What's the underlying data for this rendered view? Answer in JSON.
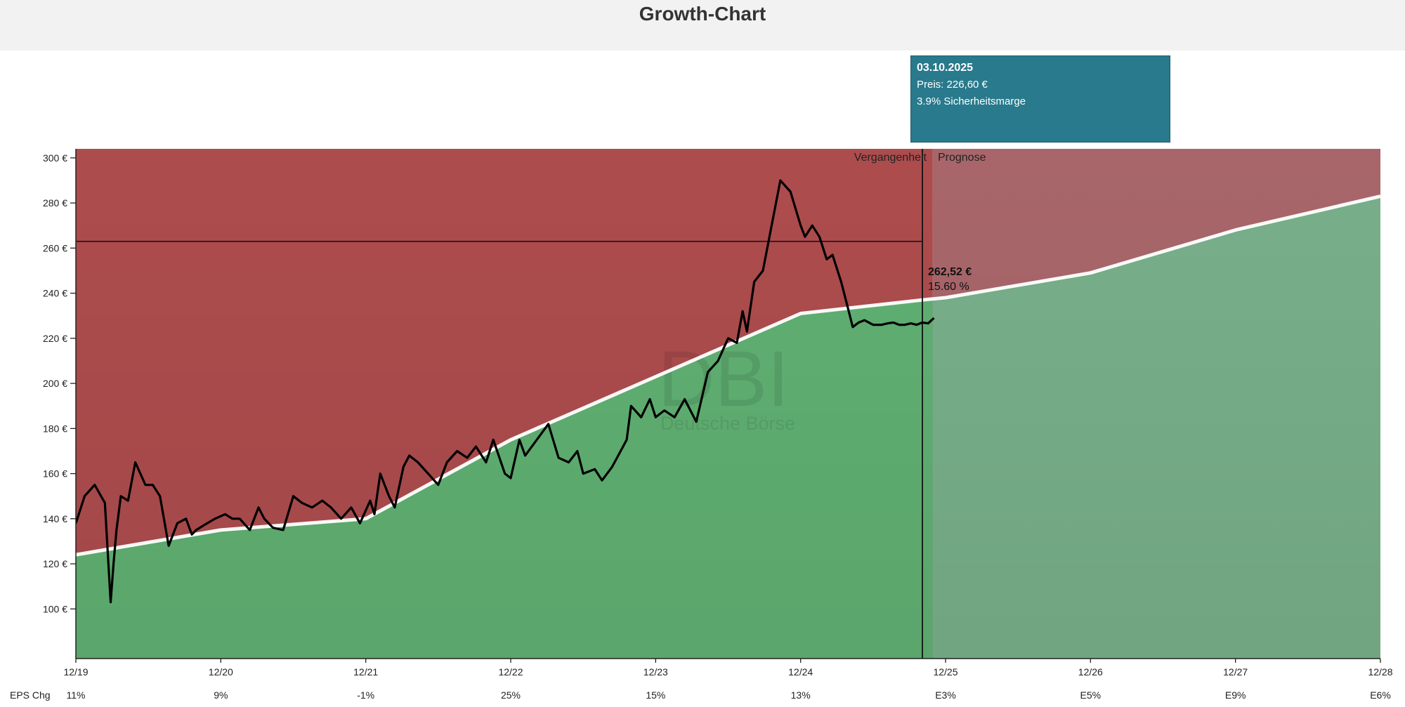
{
  "page": {
    "title": "Growth-Chart"
  },
  "tooltip": {
    "date": "03.10.2025",
    "price": "Preis: 226,60 €",
    "margin": "3.9% Sicherheitsmarge"
  },
  "colors": {
    "overvalued": "#ad4c4d",
    "undervalued": "#60b072",
    "forecast_over": "#a8666a",
    "forecast_under": "#78af8a",
    "fair_line": "#ffffff",
    "price_line": "#000000",
    "tooltip_bg": "#287a8c"
  },
  "chart_data": {
    "type": "line",
    "title": "Growth-Chart",
    "ylim": [
      78,
      304
    ],
    "xlim": [
      2019.92,
      2028.92
    ],
    "y_ticks": [
      "100 €",
      "120 €",
      "140 €",
      "160 €",
      "180 €",
      "200 €",
      "220 €",
      "240 €",
      "260 €",
      "280 €",
      "300 €"
    ],
    "y_tick_values": [
      100,
      120,
      140,
      160,
      180,
      200,
      220,
      240,
      260,
      280,
      300
    ],
    "x_tick_labels": [
      "12/19",
      "12/20",
      "12/21",
      "12/22",
      "12/23",
      "12/24",
      "12/25",
      "12/26",
      "12/27",
      "12/28"
    ],
    "x_tick_values": [
      2019.92,
      2020.92,
      2021.92,
      2022.92,
      2023.92,
      2024.92,
      2025.92,
      2026.92,
      2027.92,
      2028.92
    ],
    "eps_label": "EPS Chg",
    "eps_changes": [
      "11%",
      "9%",
      "-1%",
      "25%",
      "15%",
      "13%",
      "E3%",
      "E5%",
      "E9%",
      "E6%"
    ],
    "section_labels": {
      "past": "Vergangenheit",
      "forecast": "Prognose"
    },
    "current_marker_x": 2025.76,
    "forecast_start_x": 2025.83,
    "reference_level": 263,
    "annotation": {
      "value": "262,52 €",
      "percent": "15.60 %"
    },
    "watermark": {
      "logo": "DBI",
      "subtitle": "Deutsche Börse"
    },
    "series": [
      {
        "name": "Fair value",
        "x": [
          2019.92,
          2020.92,
          2021.92,
          2022.92,
          2023.92,
          2024.92,
          2025.76,
          2025.92,
          2026.92,
          2027.92,
          2028.92
        ],
        "values": [
          124,
          135,
          140,
          175,
          203,
          231,
          237,
          238,
          249,
          268,
          283
        ]
      },
      {
        "name": "Price",
        "x": [
          2019.92,
          2019.98,
          2020.05,
          2020.12,
          2020.16,
          2020.18,
          2020.2,
          2020.23,
          2020.28,
          2020.33,
          2020.4,
          2020.45,
          2020.5,
          2020.56,
          2020.62,
          2020.68,
          2020.72,
          2020.75,
          2020.8,
          2020.88,
          2020.95,
          2021.0,
          2021.05,
          2021.12,
          2021.18,
          2021.22,
          2021.28,
          2021.35,
          2021.42,
          2021.48,
          2021.55,
          2021.62,
          2021.68,
          2021.75,
          2021.82,
          2021.88,
          2021.95,
          2021.98,
          2022.02,
          2022.08,
          2022.12,
          2022.18,
          2022.22,
          2022.28,
          2022.35,
          2022.42,
          2022.48,
          2022.55,
          2022.62,
          2022.68,
          2022.75,
          2022.8,
          2022.88,
          2022.92,
          2022.98,
          2023.02,
          2023.1,
          2023.18,
          2023.25,
          2023.32,
          2023.38,
          2023.42,
          2023.5,
          2023.55,
          2023.62,
          2023.72,
          2023.75,
          2023.82,
          2023.88,
          2023.92,
          2023.98,
          2024.05,
          2024.12,
          2024.2,
          2024.28,
          2024.35,
          2024.42,
          2024.48,
          2024.52,
          2024.55,
          2024.6,
          2024.66,
          2024.72,
          2024.78,
          2024.85,
          2024.92,
          2024.95,
          2025.0,
          2025.05,
          2025.1,
          2025.14,
          2025.2,
          2025.24,
          2025.28,
          2025.32,
          2025.36,
          2025.42,
          2025.48,
          2025.52,
          2025.56,
          2025.6,
          2025.64,
          2025.68,
          2025.72,
          2025.76,
          2025.8,
          2025.84
        ],
        "values": [
          138,
          150,
          155,
          147,
          103,
          120,
          135,
          150,
          148,
          165,
          155,
          155,
          150,
          128,
          138,
          140,
          133,
          135,
          137,
          140,
          142,
          140,
          140,
          135,
          145,
          140,
          136,
          135,
          150,
          147,
          145,
          148,
          145,
          140,
          145,
          138,
          148,
          142,
          160,
          150,
          145,
          163,
          168,
          165,
          160,
          155,
          165,
          170,
          167,
          172,
          165,
          175,
          160,
          158,
          175,
          168,
          175,
          182,
          167,
          165,
          170,
          160,
          162,
          157,
          163,
          175,
          190,
          185,
          193,
          185,
          188,
          185,
          193,
          183,
          205,
          210,
          220,
          218,
          232,
          223,
          245,
          250,
          270,
          290,
          285,
          270,
          265,
          270,
          265,
          255,
          257,
          245,
          235,
          225,
          227,
          228,
          226,
          226,
          226.6,
          227,
          226,
          226,
          226.6,
          226,
          227,
          226.6,
          229
        ]
      }
    ]
  }
}
